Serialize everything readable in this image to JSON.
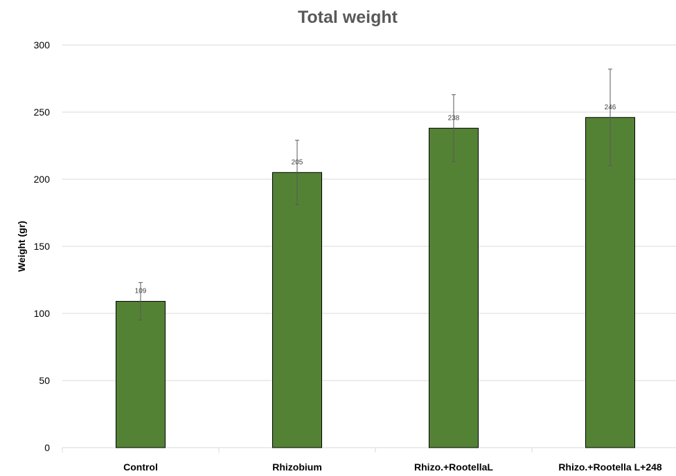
{
  "chart_data": {
    "type": "bar",
    "title": "Total weight",
    "xlabel": "",
    "ylabel": "Weight (gr)",
    "categories": [
      "Control",
      "Rhizobium",
      "Rhizo.+RootellaL",
      "Rhizo.+Rootella L+248"
    ],
    "values": [
      109,
      205,
      238,
      246
    ],
    "data_labels": [
      "109",
      "205",
      "238",
      "246"
    ],
    "errors": [
      14,
      24,
      25,
      36
    ],
    "ylim": [
      0,
      300
    ],
    "yticks": [
      0,
      50,
      100,
      150,
      200,
      250,
      300
    ],
    "grid": true,
    "legend": "none",
    "colors": {
      "bar": "#548235",
      "grid": "#d9d9d9",
      "error": "#595959",
      "title": "#595959"
    }
  }
}
